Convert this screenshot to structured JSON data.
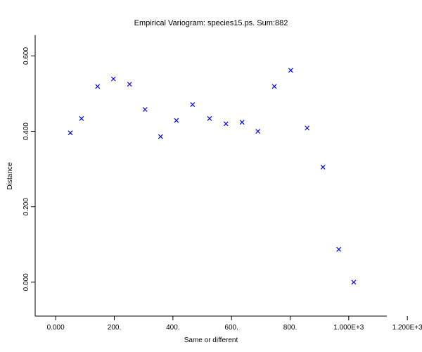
{
  "chart_data": {
    "type": "scatter",
    "title": "Empirical Variogram: species15.ps. Sum:882",
    "xlabel": "Same or different",
    "ylabel": "Distance",
    "xlim": [
      -70,
      1130
    ],
    "ylim": [
      -0.09,
      0.655
    ],
    "x_ticks": [
      0,
      200,
      400,
      600,
      800,
      1000,
      1200
    ],
    "x_tick_labels": [
      "0.000",
      "200.",
      "400.",
      "600.",
      "800.",
      "1.000E+3",
      "1.200E+3"
    ],
    "y_ticks": [
      0,
      0.2,
      0.4,
      0.6
    ],
    "y_tick_labels": [
      "0.000",
      "0.200",
      "0.400",
      "0.600"
    ],
    "marker": "x",
    "color": "#0000ff",
    "grid": false,
    "legend": "none",
    "series": [
      {
        "x": [
          50,
          88,
          143,
          197,
          252,
          305,
          358,
          412,
          467,
          525,
          581,
          636,
          690,
          746,
          802,
          858,
          912,
          966,
          1017
        ],
        "y": [
          0.396,
          0.434,
          0.519,
          0.539,
          0.525,
          0.458,
          0.386,
          0.429,
          0.471,
          0.434,
          0.42,
          0.424,
          0.4,
          0.519,
          0.562,
          0.409,
          0.305,
          0.087,
          0.0
        ]
      }
    ]
  }
}
